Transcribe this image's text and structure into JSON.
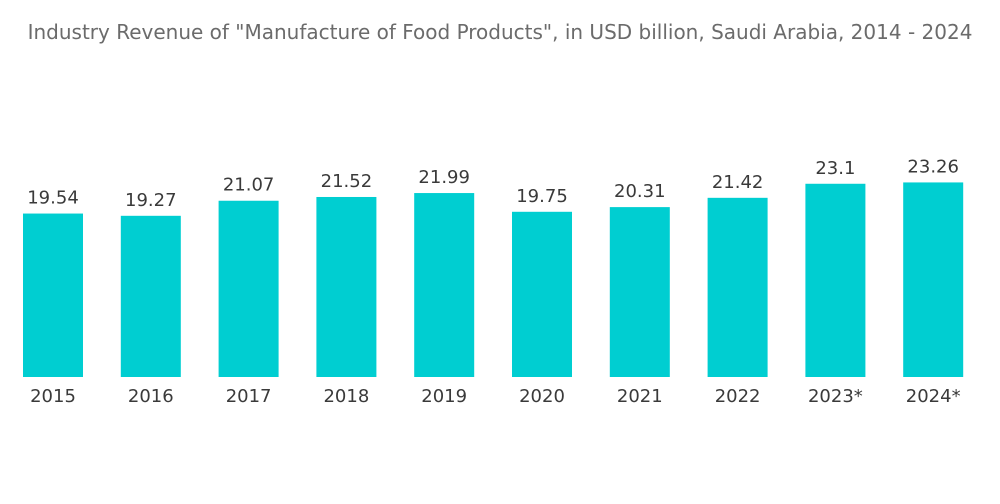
{
  "chart_data": {
    "type": "bar",
    "title": "Industry Revenue of \"Manufacture of Food Products\", in USD billion, Saudi Arabia, 2014 - 2024",
    "xlabel": "",
    "ylabel": "",
    "categories": [
      "2015",
      "2016",
      "2017",
      "2018",
      "2019",
      "2020",
      "2021",
      "2022",
      "2023*",
      "2024*"
    ],
    "values": [
      19.54,
      19.27,
      21.07,
      21.52,
      21.99,
      19.75,
      20.31,
      21.42,
      23.1,
      23.26
    ],
    "data_labels": [
      "19.54",
      "19.27",
      "21.07",
      "21.52",
      "21.99",
      "19.75",
      "20.31",
      "21.42",
      "23.1",
      "23.26"
    ],
    "bar_color": "#00ced1",
    "grid": false,
    "legend": "none"
  }
}
